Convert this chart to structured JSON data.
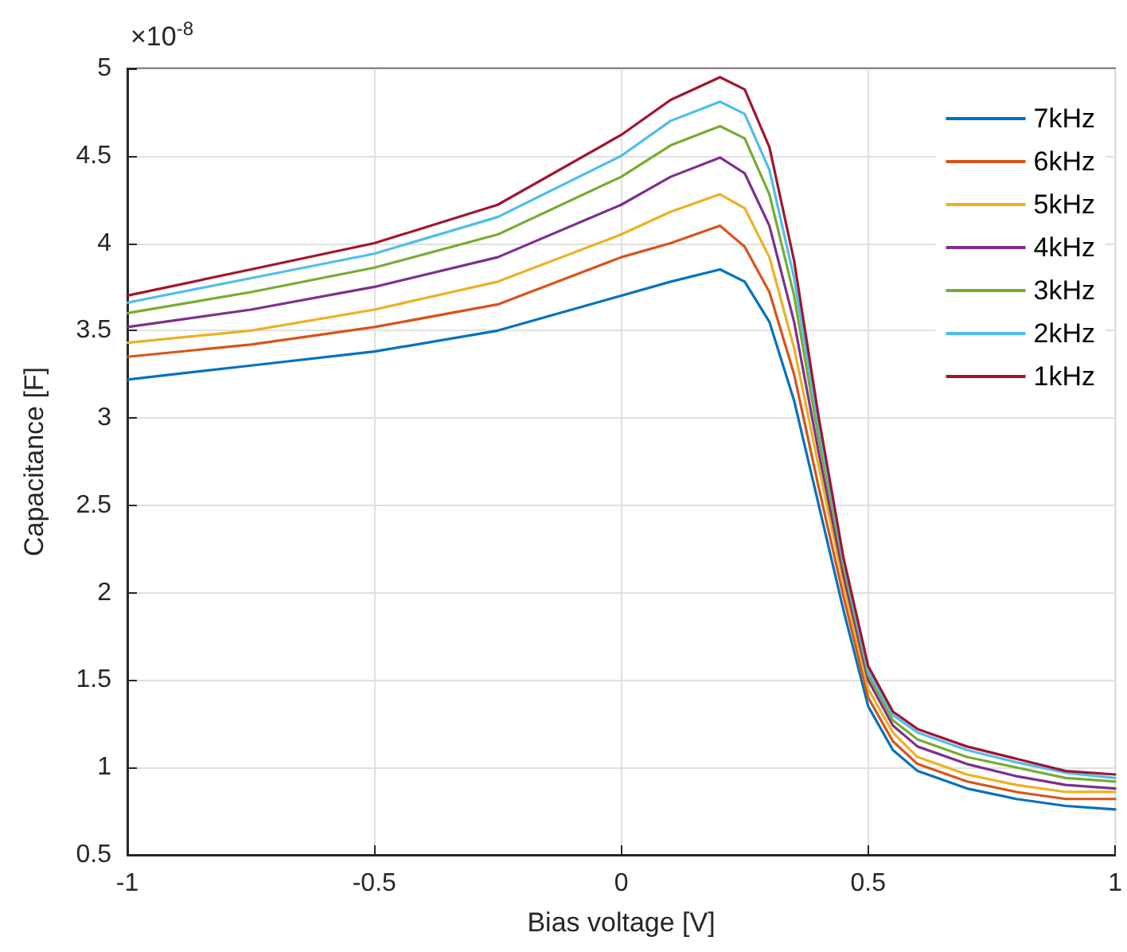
{
  "chart_data": {
    "type": "line",
    "xlabel": "Bias voltage [V]",
    "ylabel": "Capacitance [F]",
    "annotations": [
      "×10$^{-8}$"
    ],
    "x": [
      -1,
      -0.75,
      -0.5,
      -0.25,
      0,
      0.1,
      0.2,
      0.25,
      0.3,
      0.35,
      0.4,
      0.45,
      0.5,
      0.55,
      0.6,
      0.7,
      0.8,
      0.9,
      1
    ],
    "series": [
      {
        "name": "7kHz",
        "color": "#0072bd",
        "values": [
          3.22,
          3.3,
          3.38,
          3.5,
          3.7,
          3.78,
          3.85,
          3.78,
          3.55,
          3.1,
          2.5,
          1.9,
          1.35,
          1.1,
          0.98,
          0.88,
          0.82,
          0.78,
          0.76
        ]
      },
      {
        "name": "6kHz",
        "color": "#d95319",
        "values": [
          3.35,
          3.42,
          3.52,
          3.65,
          3.92,
          4.0,
          4.1,
          3.98,
          3.72,
          3.25,
          2.6,
          1.98,
          1.4,
          1.15,
          1.02,
          0.92,
          0.86,
          0.82,
          0.82
        ]
      },
      {
        "name": "5kHz",
        "color": "#edb120",
        "values": [
          3.43,
          3.5,
          3.62,
          3.78,
          4.05,
          4.18,
          4.28,
          4.2,
          3.92,
          3.4,
          2.72,
          2.05,
          1.45,
          1.2,
          1.06,
          0.96,
          0.9,
          0.86,
          0.86
        ]
      },
      {
        "name": "4kHz",
        "color": "#7e2f8e",
        "values": [
          3.52,
          3.62,
          3.75,
          3.92,
          4.22,
          4.38,
          4.49,
          4.4,
          4.1,
          3.55,
          2.8,
          2.1,
          1.5,
          1.24,
          1.12,
          1.02,
          0.95,
          0.9,
          0.88
        ]
      },
      {
        "name": "3kHz",
        "color": "#77ac30",
        "values": [
          3.6,
          3.72,
          3.86,
          4.05,
          4.38,
          4.56,
          4.67,
          4.6,
          4.28,
          3.7,
          2.88,
          2.15,
          1.53,
          1.27,
          1.16,
          1.06,
          1.0,
          0.94,
          0.92
        ]
      },
      {
        "name": "2kHz",
        "color": "#4dbeee",
        "values": [
          3.66,
          3.8,
          3.94,
          4.15,
          4.5,
          4.7,
          4.81,
          4.74,
          4.42,
          3.8,
          2.95,
          2.18,
          1.55,
          1.3,
          1.2,
          1.1,
          1.03,
          0.97,
          0.94
        ]
      },
      {
        "name": "1kHz",
        "color": "#a2142f",
        "values": [
          3.7,
          3.85,
          4.0,
          4.22,
          4.62,
          4.82,
          4.95,
          4.88,
          4.55,
          3.9,
          3.0,
          2.2,
          1.58,
          1.32,
          1.22,
          1.12,
          1.05,
          0.98,
          0.96
        ]
      }
    ],
    "xlim": [
      -1,
      1
    ],
    "xticks": [
      -1,
      -0.5,
      0,
      0.5,
      1
    ],
    "ylim": [
      0.5,
      5
    ],
    "yticks": [
      0.5,
      1,
      1.5,
      2,
      2.5,
      3,
      3.5,
      4,
      4.5,
      5
    ],
    "grid": true,
    "legend": "top right",
    "marker": "none",
    "line_style": "solid"
  }
}
